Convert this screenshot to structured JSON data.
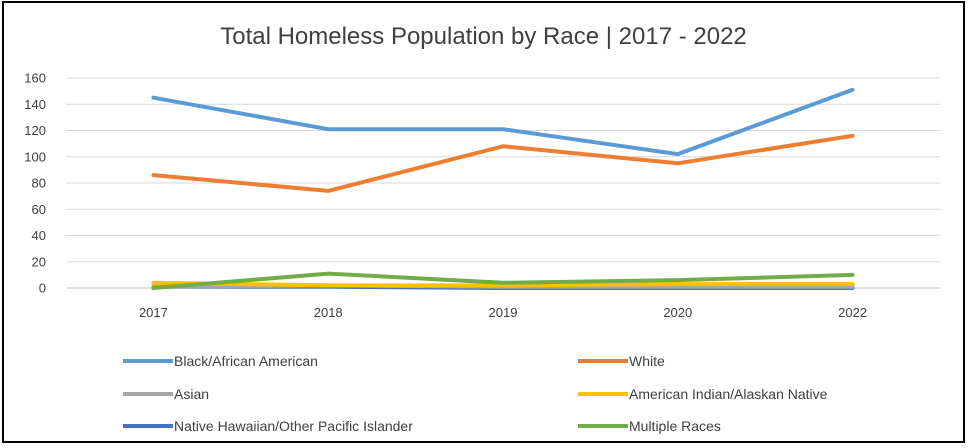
{
  "chart_data": {
    "type": "line",
    "title": "Total Homeless Population by Race | 2017 - 2022",
    "xlabel": "",
    "ylabel": "",
    "categories": [
      "2017",
      "2018",
      "2019",
      "2020",
      "2022"
    ],
    "ylim": [
      0,
      160
    ],
    "yticks": [
      0,
      20,
      40,
      60,
      80,
      100,
      120,
      140,
      160
    ],
    "grid": true,
    "legend_position": "bottom",
    "series": [
      {
        "name": "Black/African American",
        "color": "#5b9bd5",
        "values": [
          145,
          121,
          121,
          102,
          151
        ]
      },
      {
        "name": "White",
        "color": "#ed7d31",
        "values": [
          86,
          74,
          108,
          95,
          116
        ]
      },
      {
        "name": "Asian",
        "color": "#a5a5a5",
        "values": [
          1,
          2,
          1,
          1,
          1
        ]
      },
      {
        "name": "American Indian/Alaskan Native",
        "color": "#ffc000",
        "values": [
          4,
          2,
          2,
          3,
          3
        ]
      },
      {
        "name": "Native Hawaiian/Other Pacific Islander",
        "color": "#4472c4",
        "values": [
          1,
          1,
          0,
          0,
          0
        ]
      },
      {
        "name": "Multiple Races",
        "color": "#70ad47",
        "values": [
          0,
          11,
          4,
          6,
          10
        ]
      }
    ]
  }
}
